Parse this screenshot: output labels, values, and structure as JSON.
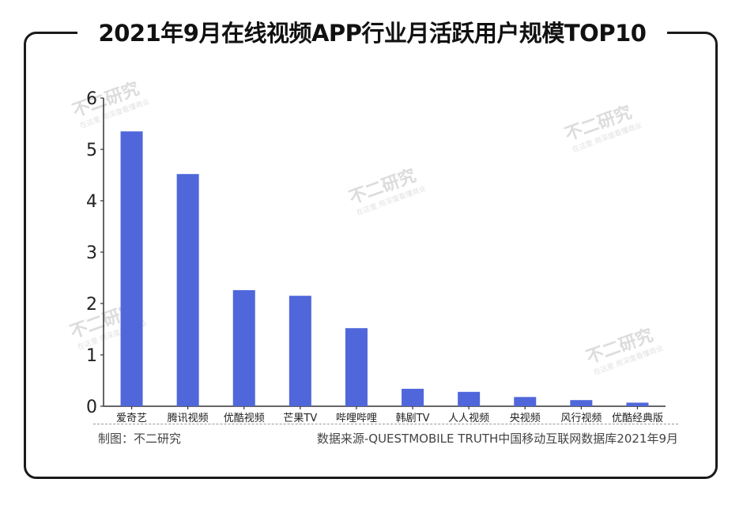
{
  "title": "2021年9月在线视频APP行业月活跃用户规模TOP10",
  "footer": {
    "left": "制图：不二研究",
    "right": "数据来源-QUESTMOBILE TRUTH中国移动互联网数据库2021年9月"
  },
  "watermark": {
    "main": "不二研究",
    "sub": "在这里 用深度看懂商业"
  },
  "colors": {
    "bar": "#4f67da",
    "axis": "#333333",
    "frame": "#1a1a1a"
  },
  "chart_data": {
    "type": "bar",
    "title": "2021年9月在线视频APP行业月活跃用户规模TOP10",
    "categories": [
      "爱奇艺",
      "腾讯视频",
      "优酷视频",
      "芒果TV",
      "哔哩哔哩",
      "韩剧TV",
      "人人视频",
      "央视频",
      "风行视频",
      "优酷经典版"
    ],
    "values": [
      5.35,
      4.52,
      2.26,
      2.15,
      1.52,
      0.34,
      0.28,
      0.18,
      0.12,
      0.07
    ],
    "yticks": [
      0,
      1,
      2,
      3,
      4,
      5,
      6
    ],
    "ylim": [
      0,
      6
    ],
    "xlabel": "",
    "ylabel": "",
    "grid": false
  }
}
